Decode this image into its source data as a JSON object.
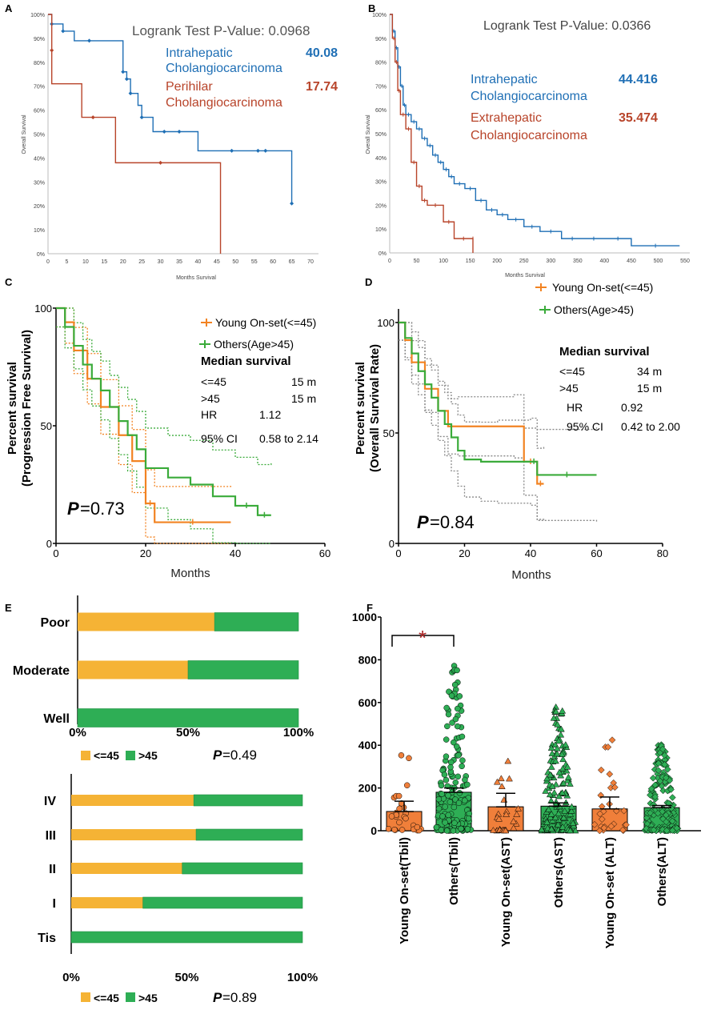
{
  "panels": {
    "A": {
      "letter": "A",
      "test_label": "Logrank Test P-Value: 0.0968",
      "xlabel": "Months Survival",
      "ylabel": "Overall Survival",
      "xticks": [
        "0",
        "5",
        "10",
        "15",
        "20",
        "25",
        "30",
        "35",
        "40",
        "45",
        "50",
        "55",
        "60",
        "65",
        "70"
      ],
      "yticks": [
        "0%",
        "10%",
        "20%",
        "30%",
        "40%",
        "50%",
        "60%",
        "70%",
        "80%",
        "90%",
        "100%"
      ],
      "legend": [
        {
          "name_line1": "Intrahepatic",
          "name_line2": "Cholangiocarcinoma",
          "median": "40.08",
          "color": "#1f6fb5"
        },
        {
          "name_line1": "Perihilar",
          "name_line2": "Cholangiocarcinoma",
          "median": "17.74",
          "color": "#b8442a"
        }
      ]
    },
    "B": {
      "letter": "B",
      "test_label": "Logrank Test P-Value: 0.0366",
      "xlabel": "Months Survival",
      "ylabel": "Overall Survival",
      "xticks": [
        "0",
        "50",
        "100",
        "150",
        "200",
        "250",
        "300",
        "350",
        "400",
        "450",
        "500",
        "550"
      ],
      "yticks": [
        "0%",
        "10%",
        "20%",
        "30%",
        "40%",
        "50%",
        "60%",
        "70%",
        "80%",
        "90%",
        "100%"
      ],
      "legend": [
        {
          "name_line1": "Intrahepatic",
          "name_line2": "Cholangiocarcinoma",
          "median": "44.416",
          "color": "#1f6fb5"
        },
        {
          "name_line1": "Extrahepatic",
          "name_line2": "Cholangiocarcinoma",
          "median": "35.474",
          "color": "#b8442a"
        }
      ]
    },
    "C": {
      "letter": "C",
      "ylabel1": "Percent survival",
      "ylabel2": "(Progression Free Survival)",
      "xlabel": "Months",
      "xticks": [
        "0",
        "20",
        "40",
        "60"
      ],
      "yticks": [
        "0",
        "50",
        "100"
      ],
      "legend1": "Young On-set(<=45)",
      "legend2": "Others(Age>45)",
      "median_title": "Median survival",
      "rows": [
        {
          "k": "<=45",
          "v": "15 m"
        },
        {
          "k": ">45",
          "v": "15 m"
        },
        {
          "k": "HR",
          "v": "1.12"
        },
        {
          "k": "95% CI",
          "v": "0.58 to 2.14"
        }
      ],
      "p_letter": "P",
      "p_value": "=0.73"
    },
    "D": {
      "letter": "D",
      "ylabel1": "Percent survival",
      "ylabel2": "(Overall Survival Rate)",
      "xlabel": "Months",
      "xticks": [
        "0",
        "20",
        "40",
        "60",
        "80"
      ],
      "yticks": [
        "0",
        "50",
        "100"
      ],
      "legend1": "Young On-set(<=45)",
      "legend2": "Others(Age>45)",
      "median_title": "Median survival",
      "rows": [
        {
          "k": "<=45",
          "v": "34 m"
        },
        {
          "k": ">45",
          "v": "15 m"
        },
        {
          "k": "HR",
          "v": "0.92"
        },
        {
          "k": "95% CI",
          "v": "0.42 to 2.00"
        }
      ],
      "p_letter": "P",
      "p_value": "=0.84"
    },
    "E": {
      "letter": "E",
      "xticks": [
        "0%",
        "50%",
        "100%"
      ],
      "legend1": "<=45",
      "legend2": ">45",
      "p_letter": "P",
      "p1": "=0.49",
      "p2": "=0.89"
    },
    "F": {
      "letter": "F",
      "yticks": [
        "0",
        "200",
        "400",
        "600",
        "800",
        "1000"
      ],
      "star": "*"
    }
  },
  "chart_data": [
    {
      "id": "A",
      "type": "line",
      "title": "Logrank Test P-Value: 0.0968",
      "xlabel": "Months Survival",
      "ylabel": "Overall Survival",
      "xlim": [
        0,
        70
      ],
      "ylim": [
        0,
        100
      ],
      "series": [
        {
          "name": "Intrahepatic Cholangiocarcinoma",
          "color": "#1f6fb5",
          "x": [
            0,
            1,
            2,
            4,
            7,
            11,
            20,
            21,
            22,
            24,
            25,
            28,
            40,
            64,
            65
          ],
          "y": [
            100,
            96,
            96,
            93,
            89,
            89,
            76,
            73,
            67,
            62,
            57,
            51,
            43,
            43,
            21
          ],
          "censored": [
            [
              1,
              96
            ],
            [
              4,
              93
            ],
            [
              11,
              89
            ],
            [
              20,
              76
            ],
            [
              21,
              73
            ],
            [
              22,
              67
            ],
            [
              25,
              57
            ],
            [
              31,
              51
            ],
            [
              35,
              51
            ],
            [
              49,
              43
            ],
            [
              56,
              43
            ],
            [
              58,
              43
            ],
            [
              65,
              21
            ]
          ]
        },
        {
          "name": "Perihilar Cholangiocarcinoma",
          "color": "#b8442a",
          "x": [
            0,
            1,
            9,
            18,
            46,
            46
          ],
          "y": [
            100,
            71,
            57,
            38,
            38,
            0
          ],
          "censored": [
            [
              1,
              85
            ],
            [
              12,
              57
            ],
            [
              30,
              38
            ]
          ]
        }
      ]
    },
    {
      "id": "B",
      "type": "line",
      "title": "Logrank Test P-Value: 0.0366",
      "xlabel": "Months Survival",
      "ylabel": "Overall Survival",
      "xlim": [
        0,
        550
      ],
      "ylim": [
        0,
        100
      ],
      "series": [
        {
          "name": "Intrahepatic Cholangiocarcinoma",
          "color": "#1f6fb5",
          "x": [
            0,
            5,
            10,
            15,
            20,
            25,
            30,
            40,
            50,
            60,
            70,
            80,
            90,
            100,
            110,
            120,
            140,
            160,
            180,
            200,
            220,
            250,
            280,
            320,
            360,
            400,
            450,
            540
          ],
          "y": [
            100,
            93,
            86,
            78,
            70,
            62,
            58,
            55,
            52,
            48,
            45,
            41,
            38,
            35,
            32,
            29,
            27,
            22,
            18,
            16,
            14,
            11,
            9,
            6,
            6,
            6,
            3,
            3
          ]
        },
        {
          "name": "Extrahepatic Cholangiocarcinoma",
          "color": "#b8442a",
          "x": [
            0,
            5,
            10,
            15,
            20,
            30,
            40,
            50,
            60,
            70,
            100,
            120,
            155,
            155
          ],
          "y": [
            100,
            90,
            80,
            68,
            58,
            52,
            38,
            28,
            22,
            20,
            13,
            6,
            6,
            0
          ]
        }
      ]
    },
    {
      "id": "C",
      "type": "line",
      "xlabel": "Months",
      "ylabel": "Percent survival (Progression Free Survival)",
      "xlim": [
        0,
        60
      ],
      "ylim": [
        0,
        100
      ],
      "series": [
        {
          "name": "Young On-set(<=45)",
          "color": "#f28322",
          "x": [
            0,
            2,
            4,
            7,
            10,
            14,
            17,
            20,
            22,
            39
          ],
          "y": [
            100,
            94,
            82,
            70,
            58,
            46,
            35,
            17,
            9,
            9
          ]
        },
        {
          "name": "Others(Age>45)",
          "color": "#3aab3a",
          "x": [
            0,
            2,
            4,
            6,
            8,
            10,
            12,
            14,
            16,
            18,
            20,
            25,
            30,
            35,
            40,
            45,
            48
          ],
          "y": [
            100,
            92,
            84,
            76,
            70,
            65,
            58,
            52,
            46,
            40,
            32,
            28,
            25,
            20,
            16,
            12,
            12
          ]
        }
      ]
    },
    {
      "id": "D",
      "type": "line",
      "xlabel": "Months",
      "ylabel": "Percent survival (Overall Survival Rate)",
      "xlim": [
        0,
        80
      ],
      "ylim": [
        0,
        100
      ],
      "series": [
        {
          "name": "Young On-set(<=45)",
          "color": "#f28322",
          "x": [
            0,
            2,
            4,
            8,
            12,
            15,
            18,
            35,
            38,
            42,
            44
          ],
          "y": [
            100,
            92,
            82,
            70,
            60,
            53,
            53,
            53,
            37,
            27,
            27
          ]
        },
        {
          "name": "Others(Age>45)",
          "color": "#3aab3a",
          "x": [
            0,
            2,
            4,
            6,
            8,
            10,
            12,
            14,
            16,
            18,
            20,
            25,
            30,
            40,
            42,
            60
          ],
          "y": [
            100,
            93,
            86,
            78,
            72,
            66,
            60,
            54,
            48,
            42,
            38,
            37,
            37,
            37,
            31,
            31
          ]
        }
      ]
    },
    {
      "id": "E-grade",
      "type": "bar",
      "orientation": "horizontal",
      "stacked": true,
      "categories": [
        "Poor",
        "Moderate",
        "Well"
      ],
      "series": [
        {
          "name": "<=45",
          "color": "#f5b335",
          "values": [
            62,
            50,
            0
          ]
        },
        {
          "name": ">45",
          "color": "#2eae55",
          "values": [
            38,
            50,
            100
          ]
        }
      ],
      "xlim": [
        0,
        100
      ],
      "p_value": "0.49"
    },
    {
      "id": "E-stage",
      "type": "bar",
      "orientation": "horizontal",
      "stacked": true,
      "categories": [
        "IV",
        "III",
        "II",
        "I",
        "Tis"
      ],
      "series": [
        {
          "name": "<=45",
          "color": "#f5b335",
          "values": [
            53,
            54,
            48,
            31,
            0
          ]
        },
        {
          "name": ">45",
          "color": "#2eae55",
          "values": [
            47,
            46,
            52,
            69,
            100
          ]
        }
      ],
      "xlim": [
        0,
        100
      ],
      "p_value": "0.89"
    },
    {
      "id": "F",
      "type": "bar",
      "categories": [
        "Young On-set(Tbil)",
        "Others(Tbil)",
        "Young On-set(AST)",
        "Others(AST)",
        "Young On-set (ALT)",
        "Others(ALT)"
      ],
      "values": [
        90,
        180,
        112,
        115,
        102,
        108
      ],
      "error_upper": [
        138,
        200,
        175,
        130,
        158,
        118
      ],
      "colors": [
        "#f07f3a",
        "#2eae55",
        "#f07f3a",
        "#2eae55",
        "#f07f3a",
        "#2eae55"
      ],
      "ylim": [
        0,
        1000
      ]
    }
  ]
}
